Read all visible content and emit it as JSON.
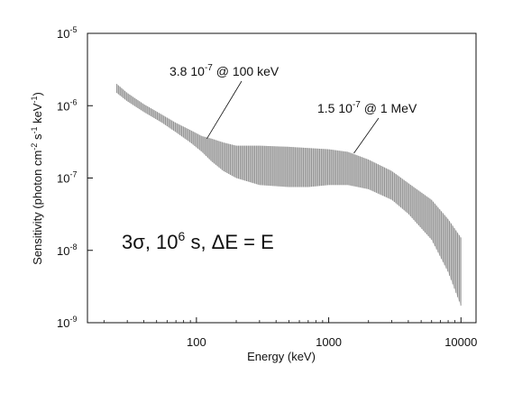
{
  "chart_data": {
    "type": "area",
    "title": "",
    "xlabel": "Energy (keV)",
    "ylabel_parts": [
      "Sensitivity (photon cm",
      "-2",
      " s",
      "-1",
      " keV",
      "-1",
      ")"
    ],
    "xscale": "log",
    "yscale": "log",
    "xlim": [
      15,
      13000
    ],
    "ylim": [
      1e-09,
      1e-05
    ],
    "grid": false,
    "x_ticks": [
      {
        "value": 100,
        "label": "100"
      },
      {
        "value": 1000,
        "label": "1000"
      },
      {
        "value": 10000,
        "label": "10000"
      }
    ],
    "y_ticks": [
      {
        "value": 1e-09,
        "base": "10",
        "exp": "-9"
      },
      {
        "value": 1e-08,
        "base": "10",
        "exp": "-8"
      },
      {
        "value": 1e-07,
        "base": "10",
        "exp": "-7"
      },
      {
        "value": 1e-06,
        "base": "10",
        "exp": "-6"
      },
      {
        "value": 1e-05,
        "base": "10",
        "exp": "-5"
      }
    ],
    "band": {
      "x": [
        25,
        30,
        40,
        55,
        70,
        90,
        110,
        130,
        160,
        200,
        300,
        500,
        700,
        1000,
        1400,
        2000,
        3000,
        4000,
        6000,
        8000,
        10000
      ],
      "upper": [
        2e-06,
        1.5e-06,
        1.05e-06,
        7.5e-07,
        5.8e-07,
        4.6e-07,
        3.8e-07,
        3.5e-07,
        3.1e-07,
        2.8e-07,
        2.8e-07,
        2.7e-07,
        2.6e-07,
        2.5e-07,
        2.3e-07,
        1.8e-07,
        1.25e-07,
        8.5e-08,
        5e-08,
        2.7e-08,
        1.5e-08
      ],
      "lower": [
        1.5e-06,
        1.15e-06,
        8.2e-07,
        5.8e-07,
        4.3e-07,
        3.1e-07,
        2.3e-07,
        1.7e-07,
        1.25e-07,
        1e-07,
        8e-08,
        7.5e-08,
        7.5e-08,
        8e-08,
        8e-08,
        7e-08,
        5e-08,
        3.2e-08,
        1.4e-08,
        5e-09,
        1.7e-09
      ]
    },
    "annotations": [
      {
        "id": "a100k",
        "parts": [
          "3.8 10",
          "-7",
          " @ 100 keV"
        ],
        "point": [
          120,
          3.5e-07
        ]
      },
      {
        "id": "a1m",
        "parts": [
          "1.5 10",
          "-7",
          " @ 1 MeV"
        ],
        "point": [
          1550,
          2.2e-07
        ]
      }
    ],
    "condition": {
      "parts": [
        "3",
        "σ",
        ", 10",
        "6",
        " s, ",
        "Δ",
        "E = E"
      ]
    }
  },
  "colors": {
    "band": "#8a8a8a",
    "axes": "#111111"
  }
}
